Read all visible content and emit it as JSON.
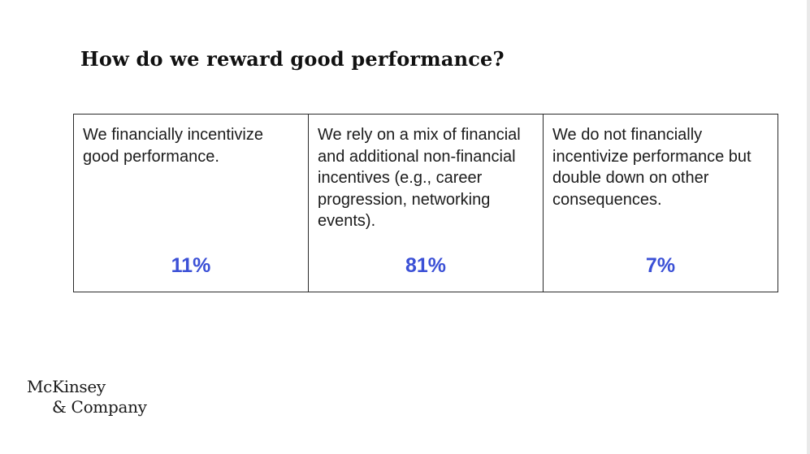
{
  "slide": {
    "title": "How do we reward good performance?",
    "options": [
      {
        "text": "We financially incentivize good performance.",
        "percent": "11%"
      },
      {
        "text": "We rely on a mix of financial and additional non-financial incentives (e.g., career progression, networking events).",
        "percent": "81%"
      },
      {
        "text": "We do not financially incentivize performance but double down on other consequences.",
        "percent": "7%"
      }
    ],
    "accent_color": "#3b50d6"
  },
  "logo": {
    "line1": "McKinsey",
    "line2": "& Company"
  }
}
